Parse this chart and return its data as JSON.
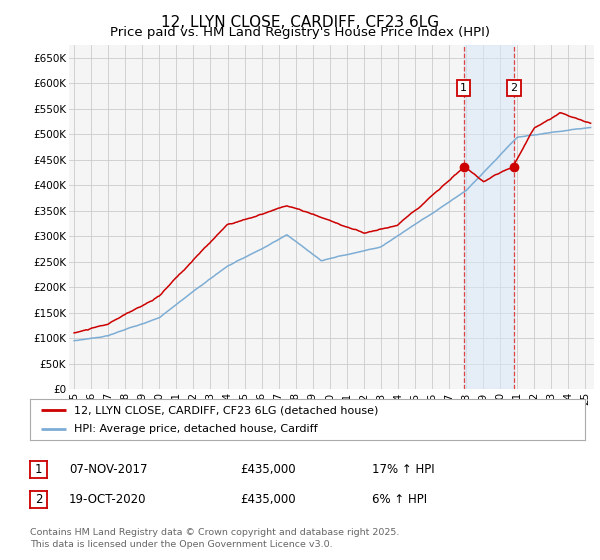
{
  "title": "12, LLYN CLOSE, CARDIFF, CF23 6LG",
  "subtitle": "Price paid vs. HM Land Registry's House Price Index (HPI)",
  "yticks": [
    0,
    50000,
    100000,
    150000,
    200000,
    250000,
    300000,
    350000,
    400000,
    450000,
    500000,
    550000,
    600000,
    650000
  ],
  "ylim": [
    0,
    675000
  ],
  "xlim_start": 1994.7,
  "xlim_end": 2025.5,
  "background_color": "#ffffff",
  "grid_color": "#cccccc",
  "plot_bg": "#f5f5f5",
  "red_line_color": "#cc0000",
  "blue_line_color": "#7dadd4",
  "dashed_line_color": "#dd4444",
  "span_color": "#d8e8f8",
  "span_alpha": 0.55,
  "marker1_year": 2017.85,
  "marker2_year": 2020.8,
  "marker1_price": 435000,
  "marker2_price": 435000,
  "annotation1_label": "1",
  "annotation2_label": "2",
  "ann_y": 590000,
  "legend_entry1": "12, LLYN CLOSE, CARDIFF, CF23 6LG (detached house)",
  "legend_entry2": "HPI: Average price, detached house, Cardiff",
  "table_row1": [
    "1",
    "07-NOV-2017",
    "£435,000",
    "17% ↑ HPI"
  ],
  "table_row2": [
    "2",
    "19-OCT-2020",
    "£435,000",
    "6% ↑ HPI"
  ],
  "footer": "Contains HM Land Registry data © Crown copyright and database right 2025.\nThis data is licensed under the Open Government Licence v3.0.",
  "title_fontsize": 11,
  "subtitle_fontsize": 9.5,
  "axis_fontsize": 7.5,
  "legend_fontsize": 8,
  "table_fontsize": 8.5,
  "footer_fontsize": 6.8,
  "red_noise_seed": 10,
  "blue_noise_seed": 20
}
